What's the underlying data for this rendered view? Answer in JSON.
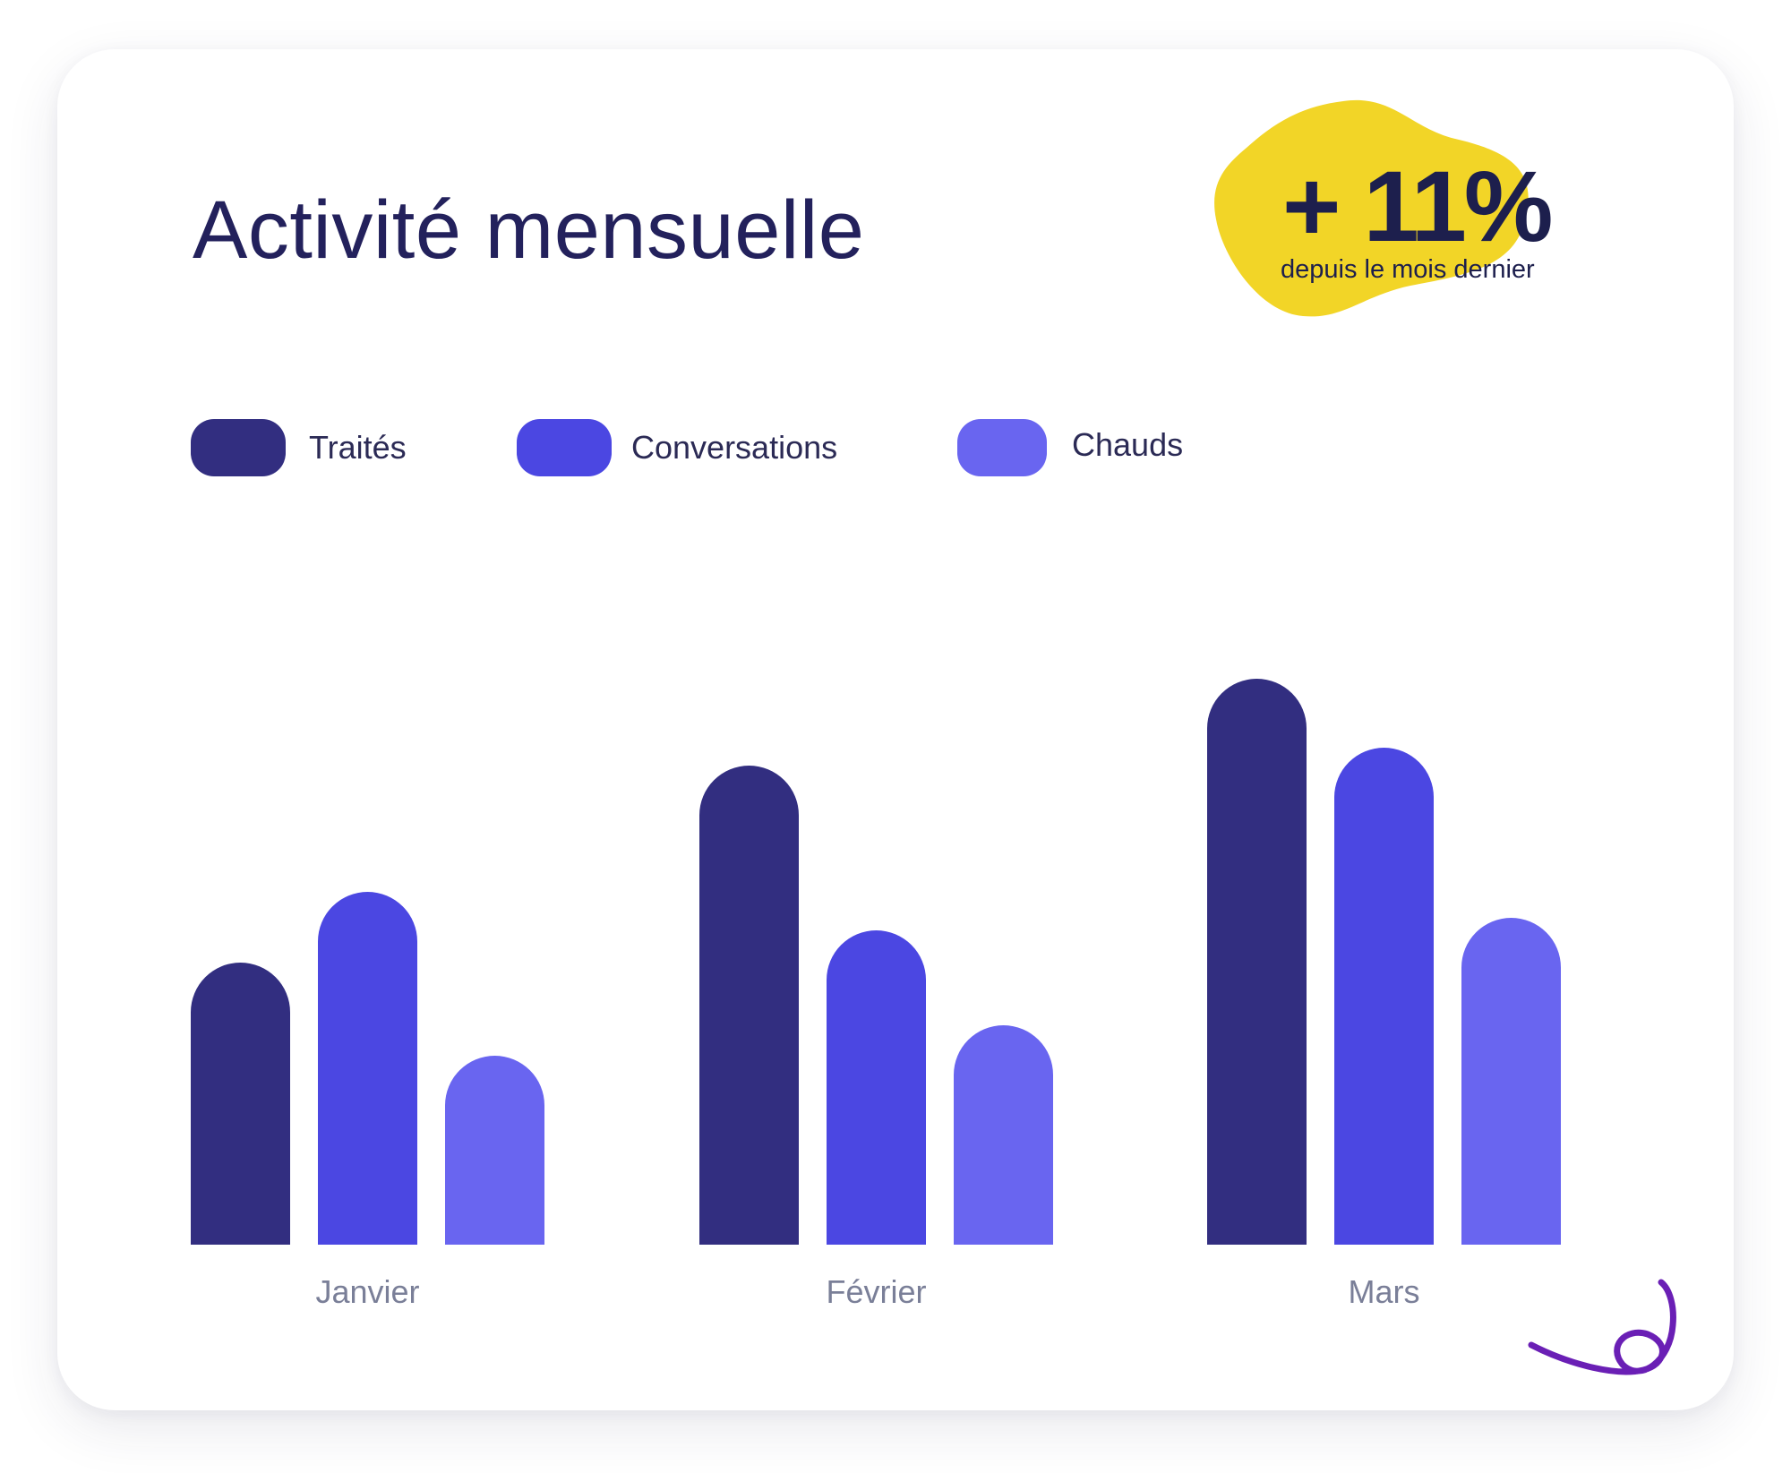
{
  "title": "Activité mensuelle",
  "badge": {
    "value": "+ 11%",
    "caption": "depuis le mois dernier",
    "color": "#f2d527"
  },
  "colors": {
    "background": "#ffffff",
    "text": "#23215c",
    "category_label": "#7a7f98",
    "squiggle": "#6a1fb5"
  },
  "chart_data": {
    "type": "bar",
    "title": "Activité mensuelle",
    "categories": [
      "Janvier",
      "Février",
      "Mars"
    ],
    "series": [
      {
        "name": "Traités",
        "color": "#322e80",
        "values": [
          315,
          535,
          632
        ]
      },
      {
        "name": "Conversations",
        "color": "#4b47e2",
        "values": [
          394,
          351,
          555
        ]
      },
      {
        "name": "Chauds",
        "color": "#6965f0",
        "values": [
          211,
          245,
          365
        ]
      }
    ],
    "ylim": [
      0,
      640
    ],
    "grid": false,
    "legend_position": "top-left",
    "xlabel": "",
    "ylabel": ""
  }
}
